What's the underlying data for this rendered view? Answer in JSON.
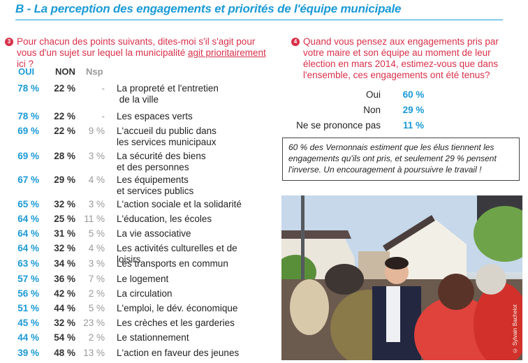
{
  "title": "B - La perception des engagements et priorités de l'équipe municipale",
  "question3": {
    "number": "3",
    "text_before": "Pour chacun des points suivants, dites-moi s'il s'agit pour vous d'un sujet sur lequel la municipalité ",
    "text_underlined": "agit prioritairement",
    "text_after": " ici ?",
    "headers": {
      "oui": "OUI",
      "non": "NON",
      "nsp": "Nsp"
    },
    "rows": [
      {
        "oui": "78 %",
        "non": "22 %",
        "nsp": "-",
        "label": "La propreté et l'entretien",
        "label2": " de la ville"
      },
      {
        "oui": "78 %",
        "non": "22 %",
        "nsp": "-",
        "label": "Les espaces verts"
      },
      {
        "oui": "69 %",
        "non": "22 %",
        "nsp": "9 %",
        "label": "L'accueil du public dans",
        "label2": "les services municipaux"
      },
      {
        "oui": "69 %",
        "non": "28 %",
        "nsp": "3 %",
        "label": "La sécurité des biens",
        "label2": "et des personnes"
      },
      {
        "oui": "67 %",
        "non": "29 %",
        "nsp": "4 %",
        "label": "Les équipements",
        "label2": "et services publics"
      },
      {
        "oui": "65 %",
        "non": "32 %",
        "nsp": "3 %",
        "label": "L'action sociale et la solidarité"
      },
      {
        "oui": "64 %",
        "non": "25 %",
        "nsp": "11 %",
        "label": "L'éducation, les écoles"
      },
      {
        "oui": "64 %",
        "non": "31 %",
        "nsp": "5 %",
        "label": "La vie associative"
      },
      {
        "oui": "64 %",
        "non": "32 %",
        "nsp": "4 %",
        "label": "Les activités culturelles et de loisirs"
      },
      {
        "oui": "63 %",
        "non": "34 %",
        "nsp": "3 %",
        "label": "Les transports en commun"
      },
      {
        "oui": "57 %",
        "non": "36 %",
        "nsp": "7 %",
        "label": "Le logement"
      },
      {
        "oui": "56 %",
        "non": "42 %",
        "nsp": "2 %",
        "label": "La circulation"
      },
      {
        "oui": "51 %",
        "non": "44 %",
        "nsp": "5 %",
        "label": "L'emploi, le dév. économique"
      },
      {
        "oui": "45 %",
        "non": "32 %",
        "nsp": "23 %",
        "label": "Les crèches et les garderies"
      },
      {
        "oui": "44 %",
        "non": "54 %",
        "nsp": "2 %",
        "label": "Le stationnement"
      },
      {
        "oui": "39 %",
        "non": "48 %",
        "nsp": "13 %",
        "label": "L'action en faveur des jeunes"
      }
    ]
  },
  "question4": {
    "number": "4",
    "text": "Quand vous pensez aux engagements pris par votre maire et son équipe au moment de leur élection en mars 2014, estimez-vous que dans l'ensemble, ces engagements ont été tenus?",
    "results": [
      {
        "label": "Oui",
        "value": "60 %"
      },
      {
        "label": "Non",
        "value": "29 %"
      },
      {
        "label": "Ne se prononce pas",
        "value": "11 %"
      }
    ],
    "note": "60 % des Vernonnais estiment que les élus tiennent les engagements qu'ils ont pris, et seulement 29 % pensent l'inverse. Un encouragement à poursuivre le travail !"
  },
  "photo": {
    "description": "Élu serrant la main d'habitants dans une rue commerçante",
    "credit": "© Sylvain Bachelot"
  },
  "colors": {
    "accent_blue": "#1a9ad6",
    "question_red": "#d9304a"
  }
}
